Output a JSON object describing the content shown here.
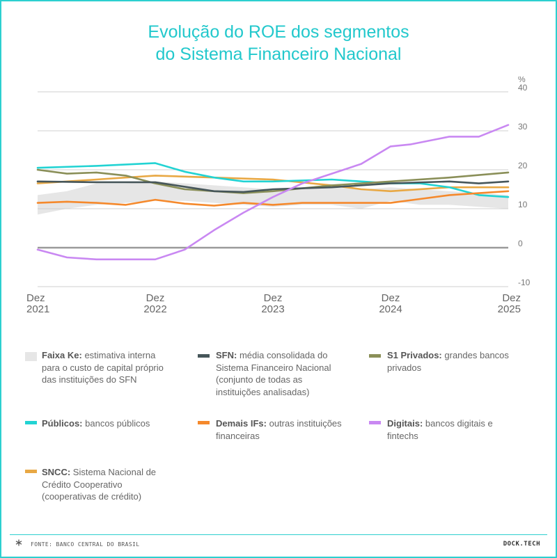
{
  "title_line1": "Evolução do ROE dos segmentos",
  "title_line2": "do Sistema Financeiro Nacional",
  "source": "FONTE: BANCO CENTRAL DO BRASIL",
  "brand": "DOCK.TECH",
  "chart_data": {
    "type": "line",
    "y_unit": "%",
    "ylim": [
      -10,
      40
    ],
    "yticks": [
      40,
      30,
      20,
      10,
      0,
      -10
    ],
    "x_domain": [
      0,
      48
    ],
    "x_ticks": [
      {
        "pos": 0,
        "line1": "Dez",
        "line2": "2021"
      },
      {
        "pos": 12,
        "line1": "Dez",
        "line2": "2022"
      },
      {
        "pos": 24,
        "line1": "Dez",
        "line2": "2023"
      },
      {
        "pos": 36,
        "line1": "Dez",
        "line2": "2024"
      },
      {
        "pos": 48,
        "line1": "Dez",
        "line2": "2025"
      }
    ],
    "grid": true,
    "band": {
      "name": "Faixa Ke",
      "color": "#e6e6e6",
      "x": [
        0,
        3,
        6,
        9,
        12,
        15,
        18,
        21,
        24,
        27,
        30,
        33,
        36,
        39,
        42,
        45,
        48
      ],
      "upper": [
        13.5,
        14.5,
        16.5,
        16.5,
        17,
        16.5,
        16,
        15.5,
        15,
        15,
        15.5,
        15,
        15.5,
        15,
        14.5,
        14,
        13.5
      ],
      "lower": [
        8.5,
        10,
        11,
        11.5,
        12,
        12,
        11.5,
        11,
        10.5,
        11,
        11,
        10,
        12,
        11,
        11,
        10.5,
        10
      ]
    },
    "series": [
      {
        "name": "SNCC",
        "color": "#e8a844",
        "x": [
          0,
          6,
          12,
          18,
          24,
          30,
          33,
          36,
          42,
          48
        ],
        "values": [
          16.5,
          17.5,
          18.5,
          18,
          17.5,
          16,
          15,
          14.5,
          15.5,
          15.5
        ]
      },
      {
        "name": "Públicos",
        "color": "#22d3d3",
        "x": [
          0,
          6,
          12,
          15,
          18,
          21,
          24,
          30,
          36,
          39,
          42,
          45,
          48
        ],
        "values": [
          20.5,
          21,
          21.7,
          19.5,
          18,
          17,
          17,
          17.5,
          16.5,
          16.5,
          15.5,
          13.5,
          13
        ]
      },
      {
        "name": "S1 Privados",
        "color": "#8a8f58",
        "x": [
          0,
          3,
          6,
          9,
          12,
          15,
          18,
          21,
          24,
          30,
          36,
          42,
          48
        ],
        "values": [
          20,
          19,
          19.3,
          18.5,
          16.5,
          15,
          14.5,
          14,
          14.5,
          16,
          17,
          18,
          19.3
        ]
      },
      {
        "name": "SFN",
        "color": "#46565a",
        "x": [
          0,
          6,
          12,
          18,
          21,
          24,
          30,
          36,
          42,
          45,
          48
        ],
        "values": [
          17,
          16.8,
          16.8,
          14.5,
          14.3,
          15,
          15.5,
          16.5,
          17,
          16.5,
          17
        ]
      },
      {
        "name": "Demais IFs",
        "color": "#f5892c",
        "x": [
          0,
          3,
          6,
          9,
          12,
          15,
          18,
          21,
          24,
          27,
          30,
          33,
          36,
          39,
          42,
          45,
          48
        ],
        "values": [
          11.5,
          11.8,
          11.5,
          11,
          12.3,
          11.3,
          10.8,
          11.5,
          11,
          11.5,
          11.5,
          11.5,
          11.5,
          12.5,
          13.5,
          14,
          14.5
        ]
      },
      {
        "name": "Digitais",
        "color": "#c988f2",
        "x": [
          0,
          3,
          6,
          9,
          12,
          15,
          18,
          21,
          24,
          27,
          30,
          33,
          36,
          38,
          42,
          45,
          48
        ],
        "values": [
          -0.5,
          -2.5,
          -3,
          -3,
          -3,
          -0.5,
          4.5,
          9,
          13,
          16.5,
          19,
          21.5,
          26,
          26.5,
          28.5,
          28.5,
          31.5
        ]
      }
    ]
  },
  "legend": [
    {
      "key": "band",
      "bold": "Faixa Ke:",
      "rest": "estimativa interna",
      "line2": "para o custo de capital próprio",
      "line3": "das instituições do SFN",
      "line4": "",
      "color": "#e6e6e6"
    },
    {
      "key": "sfn",
      "bold": "SFN:",
      "rest": "média consolidada do",
      "line2": "Sistema Financeiro Nacional",
      "line3": "(conjunto de todas as",
      "line4": "instituições analisadas)",
      "color": "#46565a"
    },
    {
      "key": "s1",
      "bold": "S1 Privados:",
      "rest": "grandes bancos",
      "line2": "privados",
      "line3": "",
      "line4": "",
      "color": "#8a8f58"
    },
    {
      "key": "publicos",
      "bold": "Públicos:",
      "rest": "bancos públicos",
      "line2": "",
      "line3": "",
      "line4": "",
      "color": "#22d3d3"
    },
    {
      "key": "demais",
      "bold": "Demais IFs:",
      "rest": "outras instituições",
      "line2": "financeiras",
      "line3": "",
      "line4": "",
      "color": "#f5892c"
    },
    {
      "key": "digitais",
      "bold": "Digitais:",
      "rest": "bancos digitais e",
      "line2": "fintechs",
      "line3": "",
      "line4": "",
      "color": "#c988f2"
    },
    {
      "key": "sncc",
      "bold": "SNCC:",
      "rest": "Sistema Nacional de",
      "line2": "Crédito Cooperativo",
      "line3": "(cooperativas de crédito)",
      "line4": "",
      "color": "#e8a844"
    }
  ]
}
